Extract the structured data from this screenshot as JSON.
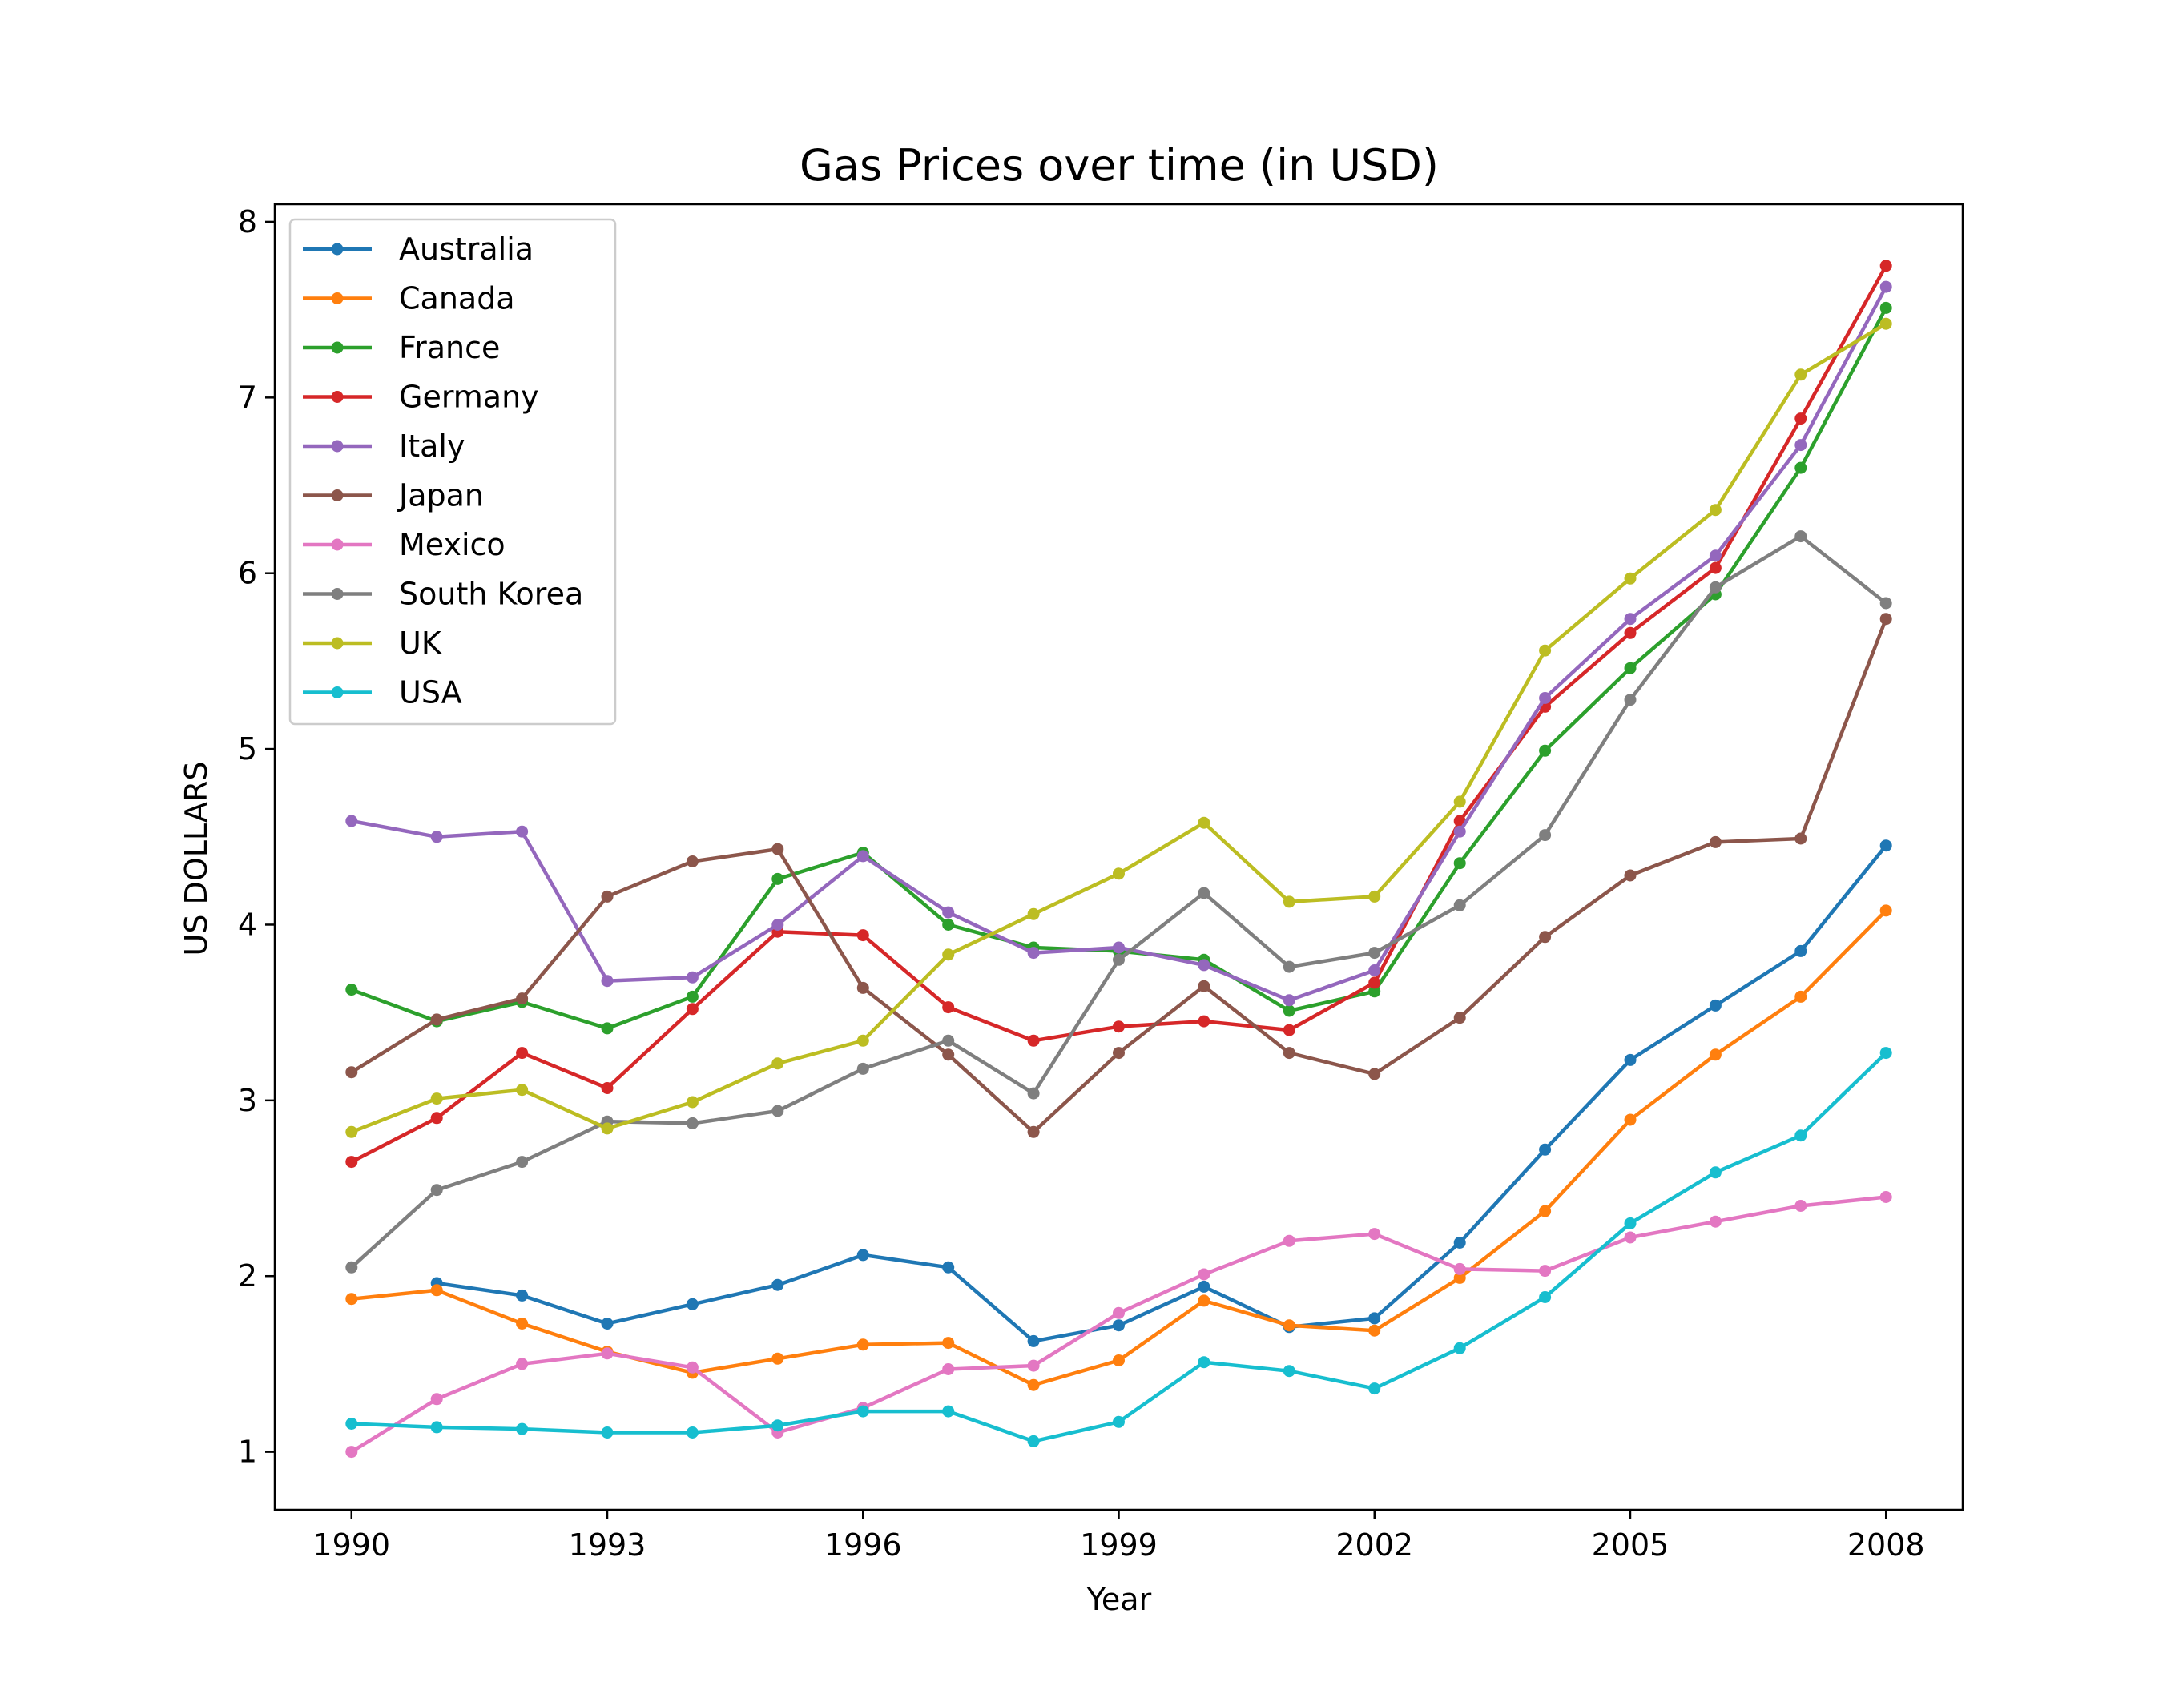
{
  "chart_data": {
    "type": "line",
    "title": "Gas Prices over time (in USD)",
    "xlabel": "Year",
    "ylabel": "US DOLLARS",
    "xlim": [
      1989.1,
      2008.9
    ],
    "ylim": [
      0.67,
      8.1
    ],
    "xticks": [
      1990,
      1993,
      1996,
      1999,
      2002,
      2005,
      2008
    ],
    "yticks": [
      1,
      2,
      3,
      4,
      5,
      6,
      7,
      8
    ],
    "grid": false,
    "legend_position": "upper-left",
    "x": [
      1990,
      1991,
      1992,
      1993,
      1994,
      1995,
      1996,
      1997,
      1998,
      1999,
      2000,
      2001,
      2002,
      2003,
      2004,
      2005,
      2006,
      2007,
      2008
    ],
    "series": [
      {
        "name": "Australia",
        "color": "#1f77b4",
        "values": [
          null,
          1.96,
          1.89,
          1.73,
          1.84,
          1.95,
          2.12,
          2.05,
          1.63,
          1.72,
          1.94,
          1.71,
          1.76,
          2.19,
          2.72,
          3.23,
          3.54,
          3.85,
          4.45
        ]
      },
      {
        "name": "Canada",
        "color": "#ff7f0e",
        "values": [
          1.87,
          1.92,
          1.73,
          1.57,
          1.45,
          1.53,
          1.61,
          1.62,
          1.38,
          1.52,
          1.86,
          1.72,
          1.69,
          1.99,
          2.37,
          2.89,
          3.26,
          3.59,
          4.08
        ]
      },
      {
        "name": "France",
        "color": "#2ca02c",
        "values": [
          3.63,
          3.45,
          3.56,
          3.41,
          3.59,
          4.26,
          4.41,
          4.0,
          3.87,
          3.85,
          3.8,
          3.51,
          3.62,
          4.35,
          4.99,
          5.46,
          5.88,
          6.6,
          7.51
        ]
      },
      {
        "name": "Germany",
        "color": "#d62728",
        "values": [
          2.65,
          2.9,
          3.27,
          3.07,
          3.52,
          3.96,
          3.94,
          3.53,
          3.34,
          3.42,
          3.45,
          3.4,
          3.67,
          4.59,
          5.24,
          5.66,
          6.03,
          6.88,
          7.75
        ]
      },
      {
        "name": "Italy",
        "color": "#9467bd",
        "values": [
          4.59,
          4.5,
          4.53,
          3.68,
          3.7,
          4.0,
          4.39,
          4.07,
          3.84,
          3.87,
          3.77,
          3.57,
          3.74,
          4.53,
          5.29,
          5.74,
          6.1,
          6.73,
          7.63
        ]
      },
      {
        "name": "Japan",
        "color": "#8c564b",
        "values": [
          3.16,
          3.46,
          3.58,
          4.16,
          4.36,
          4.43,
          3.64,
          3.26,
          2.82,
          3.27,
          3.65,
          3.27,
          3.15,
          3.47,
          3.93,
          4.28,
          4.47,
          4.49,
          5.74
        ]
      },
      {
        "name": "Mexico",
        "color": "#e377c2",
        "values": [
          1.0,
          1.3,
          1.5,
          1.56,
          1.48,
          1.11,
          1.25,
          1.47,
          1.49,
          1.79,
          2.01,
          2.2,
          2.24,
          2.04,
          2.03,
          2.22,
          2.31,
          2.4,
          2.45
        ]
      },
      {
        "name": "South Korea",
        "color": "#7f7f7f",
        "values": [
          2.05,
          2.49,
          2.65,
          2.88,
          2.87,
          2.94,
          3.18,
          3.34,
          3.04,
          3.8,
          4.18,
          3.76,
          3.84,
          4.11,
          4.51,
          5.28,
          5.92,
          6.21,
          5.83
        ]
      },
      {
        "name": "UK",
        "color": "#bcbd22",
        "values": [
          2.82,
          3.01,
          3.06,
          2.84,
          2.99,
          3.21,
          3.34,
          3.83,
          4.06,
          4.29,
          4.58,
          4.13,
          4.16,
          4.7,
          5.56,
          5.97,
          6.36,
          7.13,
          7.42
        ]
      },
      {
        "name": "USA",
        "color": "#17becf",
        "values": [
          1.16,
          1.14,
          1.13,
          1.11,
          1.11,
          1.15,
          1.23,
          1.23,
          1.06,
          1.17,
          1.51,
          1.46,
          1.36,
          1.59,
          1.88,
          2.3,
          2.59,
          2.8,
          3.27
        ]
      }
    ]
  }
}
